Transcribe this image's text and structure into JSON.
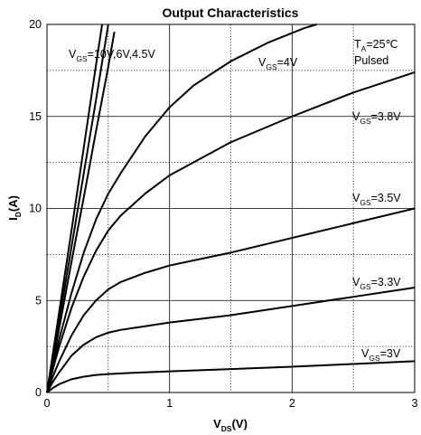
{
  "chart_data": {
    "type": "line",
    "title": "Output Characteristics",
    "xlabel": {
      "main": "V",
      "sub": "DS",
      "tail": "(V)"
    },
    "ylabel": {
      "main": "I",
      "sub": "D",
      "tail": "(A)"
    },
    "xlim": [
      0,
      3
    ],
    "ylim": [
      0,
      20
    ],
    "xticks": [
      0,
      1,
      2,
      3
    ],
    "yticks": [
      0,
      5,
      10,
      15,
      20
    ],
    "grid": "major solid, minor dotted",
    "conditions": [
      {
        "main": "T",
        "sub": "A",
        "tail": "=25℃"
      },
      {
        "main": "Pulsed",
        "sub": "",
        "tail": ""
      }
    ],
    "series": [
      {
        "label": {
          "main": "V",
          "sub": "GS",
          "tail": "=10V,6V,4.5V"
        },
        "x": [
          0,
          0.1,
          0.2,
          0.3,
          0.4,
          0.45
        ],
        "y": [
          0,
          4.4,
          8.8,
          13.3,
          17.8,
          20
        ]
      },
      {
        "x": [
          0,
          0.1,
          0.2,
          0.3,
          0.4,
          0.5
        ],
        "y": [
          0,
          3.95,
          7.9,
          11.9,
          15.9,
          20
        ]
      },
      {
        "x": [
          0,
          0.1,
          0.2,
          0.3,
          0.4,
          0.5,
          0.55
        ],
        "y": [
          0,
          3.5,
          7.1,
          10.6,
          14.2,
          17.7,
          19.6
        ]
      },
      {
        "label": {
          "main": "V",
          "sub": "GS",
          "tail": "=4V"
        },
        "x": [
          0,
          0.05,
          0.1,
          0.2,
          0.3,
          0.4,
          0.5,
          0.6,
          0.8,
          1.0,
          1.2,
          1.5,
          1.8,
          2.1,
          2.2
        ],
        "y": [
          0,
          1.5,
          2.9,
          5.4,
          7.6,
          9.4,
          10.8,
          11.9,
          13.9,
          15.5,
          16.7,
          18.0,
          19.0,
          19.8,
          20.0
        ]
      },
      {
        "label": {
          "main": "V",
          "sub": "GS",
          "tail": "=3.8V"
        },
        "x": [
          0,
          0.05,
          0.1,
          0.2,
          0.3,
          0.4,
          0.5,
          0.6,
          0.8,
          1.0,
          1.5,
          2.0,
          2.5,
          3.0
        ],
        "y": [
          0,
          1.3,
          2.5,
          4.6,
          6.3,
          7.7,
          8.8,
          9.6,
          10.8,
          11.8,
          13.6,
          15.0,
          16.3,
          17.4
        ]
      },
      {
        "label": {
          "main": "V",
          "sub": "GS",
          "tail": "=3.5V"
        },
        "x": [
          0,
          0.05,
          0.1,
          0.2,
          0.3,
          0.4,
          0.5,
          0.6,
          0.8,
          1.0,
          1.5,
          2.0,
          2.5,
          3.0
        ],
        "y": [
          0,
          0.9,
          1.7,
          3.1,
          4.2,
          5.0,
          5.6,
          6.0,
          6.5,
          6.9,
          7.6,
          8.4,
          9.2,
          10.0
        ]
      },
      {
        "label": {
          "main": "V",
          "sub": "GS",
          "tail": "=3.3V"
        },
        "x": [
          0,
          0.05,
          0.1,
          0.2,
          0.3,
          0.4,
          0.5,
          0.6,
          0.8,
          1.0,
          1.5,
          2.0,
          2.5,
          3.0
        ],
        "y": [
          0,
          0.6,
          1.1,
          2.0,
          2.6,
          3.0,
          3.25,
          3.4,
          3.6,
          3.8,
          4.2,
          4.7,
          5.2,
          5.7
        ]
      },
      {
        "label": {
          "main": "V",
          "sub": "GS",
          "tail": "=3V"
        },
        "x": [
          0,
          0.05,
          0.1,
          0.2,
          0.3,
          0.4,
          0.5,
          0.7,
          1.0,
          1.5,
          2.0,
          2.5,
          3.0
        ],
        "y": [
          0,
          0.25,
          0.45,
          0.72,
          0.86,
          0.95,
          1.0,
          1.07,
          1.15,
          1.27,
          1.4,
          1.55,
          1.7
        ]
      }
    ]
  }
}
